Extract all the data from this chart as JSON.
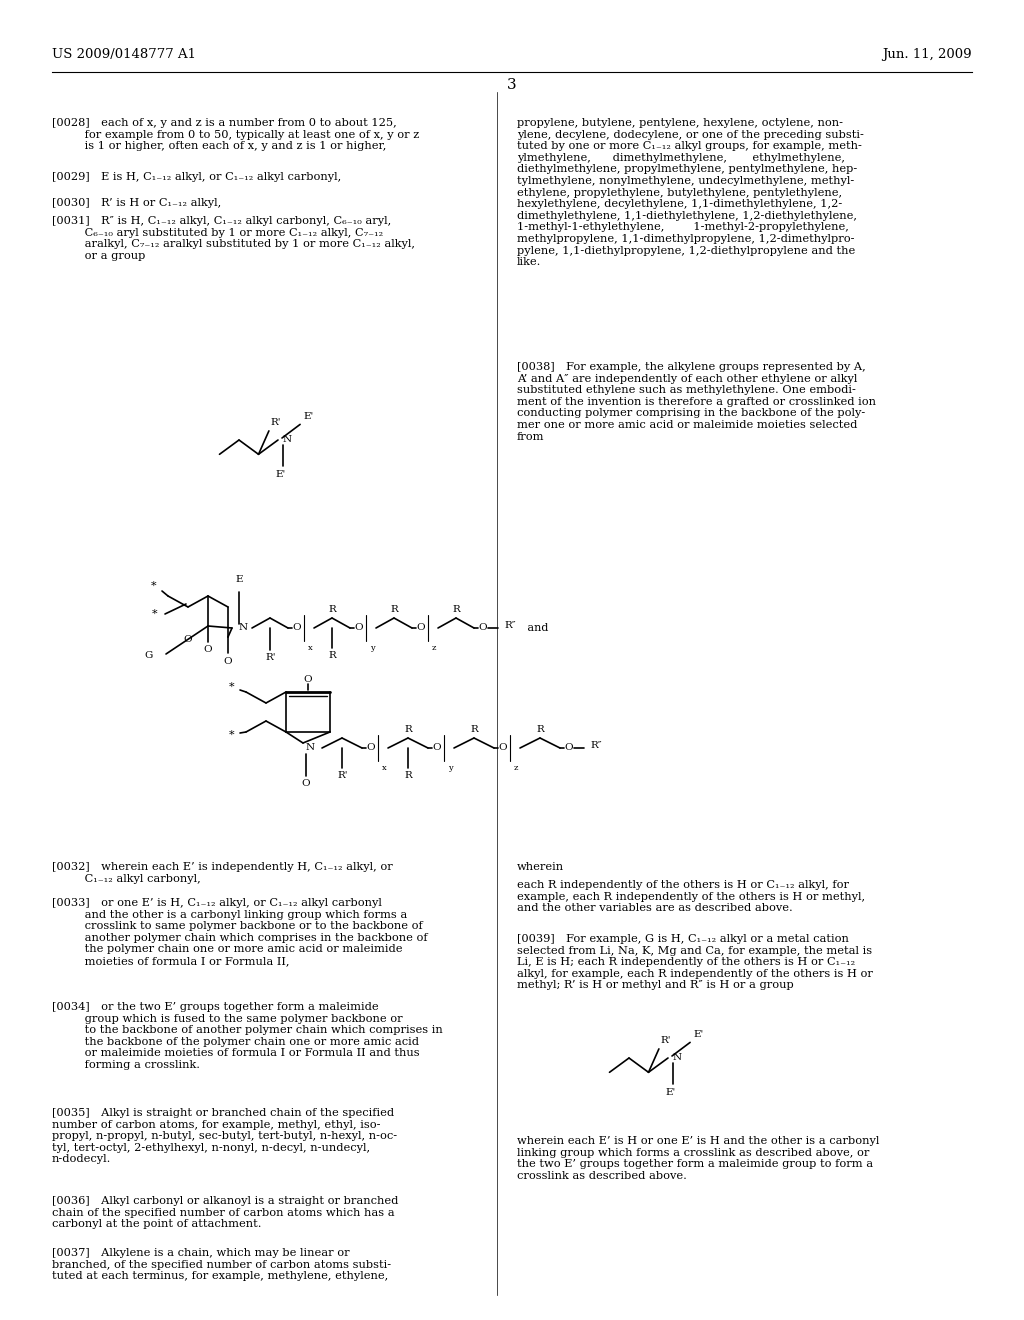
{
  "background_color": "#ffffff",
  "header_left": "US 2009/0148777 A1",
  "header_right": "Jun. 11, 2009",
  "page_number": "3",
  "figsize": [
    10.24,
    13.2
  ],
  "dpi": 100,
  "left_texts": [
    [
      52,
      118,
      "[0028] each of x, y and z is a number from 0 to about 125,\n         for example from 0 to 50, typically at least one of x, y or z\n         is 1 or higher, often each of x, y and z is 1 or higher,"
    ],
    [
      52,
      172,
      "[0029] E is H, C₁₋₁₂ alkyl, or C₁₋₁₂ alkyl carbonyl,"
    ],
    [
      52,
      198,
      "[0030] R’ is H or C₁₋₁₂ alkyl,"
    ],
    [
      52,
      216,
      "[0031] R″ is H, C₁₋₁₂ alkyl, C₁₋₁₂ alkyl carbonyl, C₆₋₁₀ aryl,\n         C₆₋₁₀ aryl substituted by 1 or more C₁₋₁₂ alkyl, C₇₋₁₂\n         aralkyl, C₇₋₁₂ aralkyl substituted by 1 or more C₁₋₁₂ alkyl,\n         or a group"
    ]
  ],
  "right_texts_top": [
    [
      517,
      118,
      "propylene, butylene, pentylene, hexylene, octylene, non-\nylene, decylene, dodecylene, or one of the preceding substi-\ntuted by one or more C₁₋₁₂ alkyl groups, for example, meth-\nylmethylene,      dimethylmethylene,       ethylmethylene,\ndiethylmethylene, propylmethylene, pentylmethylene, hep-\ntylmethylene, nonylmethylene, undecylmethylene, methyl-\nethylene, propylethylene, butylethylene, pentylethylene,\nhexylethylene, decylethylene, 1,1-dimethylethylene, 1,2-\ndimethylethylene, 1,1-diethylethylene, 1,2-diethylethylene,\n1-methyl-1-ethylethylene,        1-methyl-2-propylethylene,\nmethylpropylene, 1,1-dimethylpropylene, 1,2-dimethylpro-\npylene, 1,1-diethylpropylene, 1,2-diethylpropylene and the\nlike."
    ],
    [
      517,
      362,
      "[0038] For example, the alkylene groups represented by A,\nA’ and A″ are independently of each other ethylene or alkyl\nsubstituted ethylene such as methylethylene. One embodi-\nment of the invention is therefore a grafted or crosslinked ion\nconducting polymer comprising in the backbone of the poly-\nmer one or more amic acid or maleimide moieties selected\nfrom"
    ]
  ],
  "bottom_left_texts": [
    [
      52,
      862,
      "[0032] wherein each E’ is independently H, C₁₋₁₂ alkyl, or\n         C₁₋₁₂ alkyl carbonyl,"
    ],
    [
      52,
      898,
      "[0033] or one E’ is H, C₁₋₁₂ alkyl, or C₁₋₁₂ alkyl carbonyl\n         and the other is a carbonyl linking group which forms a\n         crosslink to same polymer backbone or to the backbone of\n         another polymer chain which comprises in the backbone of\n         the polymer chain one or more amic acid or maleimide\n         moieties of formula I or Formula II,"
    ],
    [
      52,
      1002,
      "[0034] or the two E’ groups together form a maleimide\n         group which is fused to the same polymer backbone or\n         to the backbone of another polymer chain which comprises in\n         the backbone of the polymer chain one or more amic acid\n         or maleimide moieties of formula I or Formula II and thus\n         forming a crosslink."
    ],
    [
      52,
      1108,
      "[0035] Alkyl is straight or branched chain of the specified\nnumber of carbon atoms, for example, methyl, ethyl, iso-\npropyl, n-propyl, n-butyl, sec-butyl, tert-butyl, n-hexyl, n-oc-\ntyl, tert-octyl, 2-ethylhexyl, n-nonyl, n-decyl, n-undecyl,\nn-dodecyl."
    ],
    [
      52,
      1196,
      "[0036] Alkyl carbonyl or alkanoyl is a straight or branched\nchain of the specified number of carbon atoms which has a\ncarbonyl at the point of attachment."
    ],
    [
      52,
      1248,
      "[0037] Alkylene is a chain, which may be linear or\nbranched, of the specified number of carbon atoms substi-\ntuted at each terminus, for example, methylene, ethylene,"
    ]
  ],
  "bottom_right_texts": [
    [
      517,
      862,
      "wherein"
    ],
    [
      517,
      880,
      "each R independently of the others is H or C₁₋₁₂ alkyl, for\nexample, each R independently of the others is H or methyl,\nand the other variables are as described above."
    ],
    [
      517,
      934,
      "[0039] For example, G is H, C₁₋₁₂ alkyl or a metal cation\nselected from Li, Na, K, Mg and Ca, for example, the metal is\nLi, E is H; each R independently of the others is H or C₁₋₁₂\nalkyl, for example, each R independently of the others is H or\nmethyl; R’ is H or methyl and R″ is H or a group"
    ],
    [
      517,
      1136,
      "wherein each E’ is H or one E’ is H and the other is a carbonyl\nlinking group which forms a crosslink as described above, or\nthe two E’ groups together form a maleimide group to form a\ncrosslink as described above."
    ]
  ]
}
